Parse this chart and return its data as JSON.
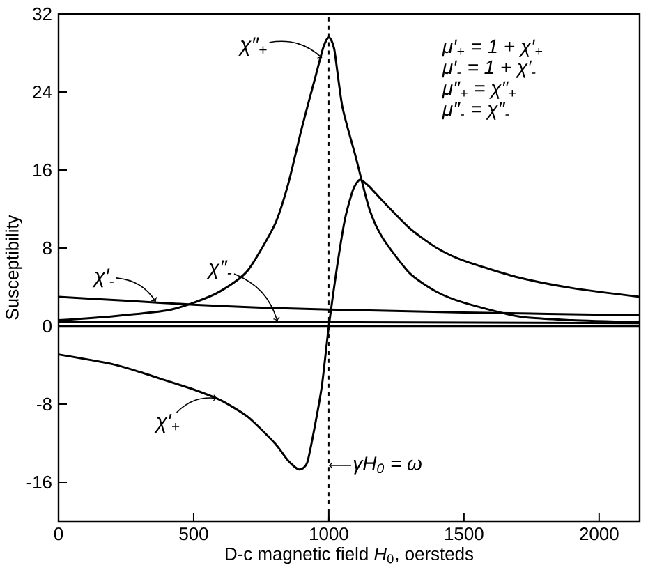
{
  "chart_data": {
    "type": "line",
    "xlabel": "D-c magnetic field *H*$_{0}$, oersteds",
    "ylabel": "Susceptibility",
    "xlim": [
      0,
      2150
    ],
    "ylim": [
      -20,
      32
    ],
    "xticks": [
      0,
      500,
      1000,
      1500,
      2000
    ],
    "yticks": [
      -16,
      -8,
      0,
      8,
      16,
      24,
      32
    ],
    "series": [
      {
        "color": "#000000",
        "x": [
          0,
          200,
          400,
          500,
          600,
          700,
          800,
          850,
          900,
          950,
          980,
          1000,
          1020,
          1050,
          1100,
          1150,
          1200,
          1300,
          1400,
          1500,
          1700,
          1900,
          2150
        ],
        "values": [
          0.6,
          1.0,
          1.6,
          2.4,
          3.6,
          5.7,
          10.4,
          14.6,
          20.3,
          25.5,
          28.6,
          29.6,
          28.4,
          22.5,
          17.3,
          12.0,
          9.0,
          5.4,
          3.5,
          2.4,
          1.0,
          0.6,
          0.4
        ]
      },
      {
        "color": "#000000",
        "x": [
          0,
          200,
          300,
          400,
          500,
          600,
          700,
          800,
          850,
          890,
          920,
          950,
          975,
          1000,
          1030,
          1060,
          1090,
          1115,
          1150,
          1200,
          1300,
          1400,
          1500,
          1700,
          1900,
          2150
        ],
        "values": [
          -2.9,
          -3.9,
          -4.7,
          -5.6,
          -6.5,
          -7.6,
          -9.3,
          -12.0,
          -13.8,
          -14.7,
          -14.0,
          -10.0,
          -6.0,
          0,
          6,
          11,
          14,
          15,
          14.3,
          12.8,
          10,
          8,
          6.7,
          5.0,
          3.9,
          3.0
        ]
      },
      {
        "color": "#000000",
        "x": [
          0,
          250,
          500,
          750,
          1000,
          1500,
          2150
        ],
        "values": [
          3.0,
          2.6,
          2.2,
          1.9,
          1.7,
          1.4,
          1.1
        ]
      },
      {
        "color": "#000000",
        "x": [
          0,
          1000,
          2150
        ],
        "values": [
          0.4,
          0.4,
          0.3
        ]
      }
    ],
    "ref_lines": [
      {
        "axis": "x",
        "value": 1000,
        "label": "γH$_{0}$ = ω",
        "line_style": "dashed"
      },
      {
        "axis": "y",
        "value": 0
      }
    ],
    "annotations": [
      {
        "text": "χ″$_{+}$",
        "x": 975,
        "y": 27.5
      },
      {
        "text": "χ′$_{-}$",
        "x": 360,
        "y": 2.5
      },
      {
        "text": "χ″$_{-}$",
        "x": 810,
        "y": 0.5
      },
      {
        "text": "χ′$_{+}$",
        "x": 586,
        "y": -7.4
      },
      "μ′$_{+}$ = 1 + χ′$_{+}$",
      "μ′$_{-}$ = 1 + χ′$_{-}$",
      "μ″$_{+}$ = χ″$_{+}$",
      "μ″$_{-}$ = χ″$_{-}$"
    ]
  }
}
